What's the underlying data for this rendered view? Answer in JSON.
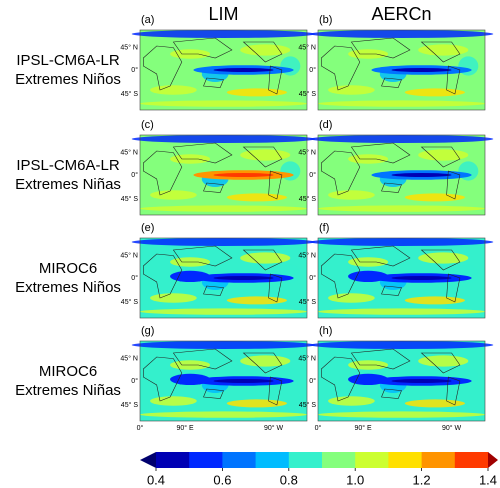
{
  "columns": [
    "LIM",
    "AERCn"
  ],
  "rows": [
    {
      "model": "IPSL-CM6A-LR",
      "case": "Extremes Niños"
    },
    {
      "model": "IPSL-CM6A-LR",
      "case": "Extremes Niñas"
    },
    {
      "model": "MIROC6",
      "case": "Extremes Niños"
    },
    {
      "model": "MIROC6",
      "case": "Extremes Niñas"
    }
  ],
  "panels": [
    "(a)",
    "(b)",
    "(c)",
    "(d)",
    "(e)",
    "(f)",
    "(g)",
    "(h)"
  ],
  "lat_labels": [
    "45° N",
    "0°",
    "45° S"
  ],
  "lon_labels": [
    "0°",
    "90° E",
    "90° W"
  ],
  "colorbar": {
    "lim": [
      0.4,
      1.4
    ],
    "ticks": [
      0.4,
      0.6,
      0.8,
      {
        "value": 1,
        "label": "1.0"
      },
      1.2,
      1.4
    ],
    "colors": [
      "#0000b4",
      "#0028ff",
      "#0074ff",
      "#00bcff",
      "#34f0cc",
      "#84ff7c",
      "#ccff30",
      "#ffe000",
      "#ff9400",
      "#ff3a00"
    ],
    "under_color": "#00006e",
    "over_color": "#a00000"
  }
}
